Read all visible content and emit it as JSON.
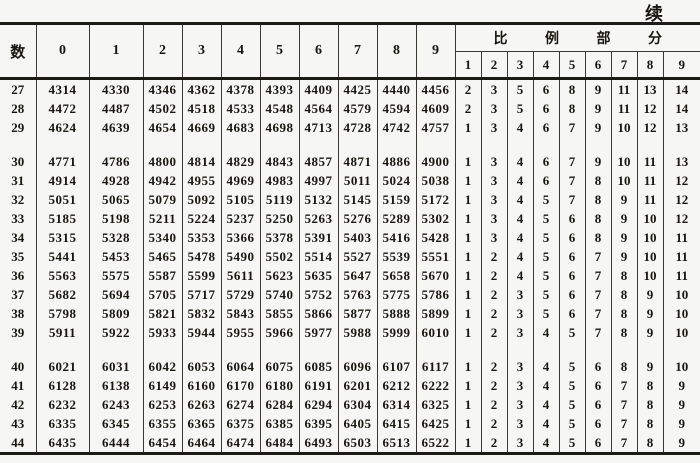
{
  "page": {
    "continued_label": "续"
  },
  "table": {
    "row_header_label": "数",
    "digit_headers": [
      "0",
      "1",
      "2",
      "3",
      "4",
      "5",
      "6",
      "7",
      "8",
      "9"
    ],
    "pp_title": "比 例 部 分",
    "pp_headers": [
      "1",
      "2",
      "3",
      "4",
      "5",
      "6",
      "7",
      "8",
      "9"
    ],
    "groups": [
      {
        "rows": [
          {
            "n": "27",
            "values": [
              "4314",
              "4330",
              "4346",
              "4362",
              "4378",
              "4393",
              "4409",
              "4425",
              "4440",
              "4456"
            ],
            "pp": [
              "2",
              "3",
              "5",
              "6",
              "8",
              "9",
              "11",
              "13",
              "14"
            ]
          },
          {
            "n": "28",
            "values": [
              "4472",
              "4487",
              "4502",
              "4518",
              "4533",
              "4548",
              "4564",
              "4579",
              "4594",
              "4609"
            ],
            "pp": [
              "2",
              "3",
              "5",
              "6",
              "8",
              "9",
              "11",
              "12",
              "14"
            ]
          },
          {
            "n": "29",
            "values": [
              "4624",
              "4639",
              "4654",
              "4669",
              "4683",
              "4698",
              "4713",
              "4728",
              "4742",
              "4757"
            ],
            "pp": [
              "1",
              "3",
              "4",
              "6",
              "7",
              "9",
              "10",
              "12",
              "13"
            ]
          }
        ]
      },
      {
        "rows": [
          {
            "n": "30",
            "values": [
              "4771",
              "4786",
              "4800",
              "4814",
              "4829",
              "4843",
              "4857",
              "4871",
              "4886",
              "4900"
            ],
            "pp": [
              "1",
              "3",
              "4",
              "6",
              "7",
              "9",
              "10",
              "11",
              "13"
            ]
          },
          {
            "n": "31",
            "values": [
              "4914",
              "4928",
              "4942",
              "4955",
              "4969",
              "4983",
              "4997",
              "5011",
              "5024",
              "5038"
            ],
            "pp": [
              "1",
              "3",
              "4",
              "6",
              "7",
              "8",
              "10",
              "11",
              "12"
            ]
          },
          {
            "n": "32",
            "values": [
              "5051",
              "5065",
              "5079",
              "5092",
              "5105",
              "5119",
              "5132",
              "5145",
              "5159",
              "5172"
            ],
            "pp": [
              "1",
              "3",
              "4",
              "5",
              "7",
              "8",
              "9",
              "11",
              "12"
            ]
          },
          {
            "n": "33",
            "values": [
              "5185",
              "5198",
              "5211",
              "5224",
              "5237",
              "5250",
              "5263",
              "5276",
              "5289",
              "5302"
            ],
            "pp": [
              "1",
              "3",
              "4",
              "5",
              "6",
              "8",
              "9",
              "10",
              "12"
            ]
          },
          {
            "n": "34",
            "values": [
              "5315",
              "5328",
              "5340",
              "5353",
              "5366",
              "5378",
              "5391",
              "5403",
              "5416",
              "5428"
            ],
            "pp": [
              "1",
              "3",
              "4",
              "5",
              "6",
              "8",
              "9",
              "10",
              "11"
            ]
          },
          {
            "n": "35",
            "values": [
              "5441",
              "5453",
              "5465",
              "5478",
              "5490",
              "5502",
              "5514",
              "5527",
              "5539",
              "5551"
            ],
            "pp": [
              "1",
              "2",
              "4",
              "5",
              "6",
              "7",
              "9",
              "10",
              "11"
            ]
          },
          {
            "n": "36",
            "values": [
              "5563",
              "5575",
              "5587",
              "5599",
              "5611",
              "5623",
              "5635",
              "5647",
              "5658",
              "5670"
            ],
            "pp": [
              "1",
              "2",
              "4",
              "5",
              "6",
              "7",
              "8",
              "10",
              "11"
            ]
          },
          {
            "n": "37",
            "values": [
              "5682",
              "5694",
              "5705",
              "5717",
              "5729",
              "5740",
              "5752",
              "5763",
              "5775",
              "5786"
            ],
            "pp": [
              "1",
              "2",
              "3",
              "5",
              "6",
              "7",
              "8",
              "9",
              "10"
            ]
          },
          {
            "n": "38",
            "values": [
              "5798",
              "5809",
              "5821",
              "5832",
              "5843",
              "5855",
              "5866",
              "5877",
              "5888",
              "5899"
            ],
            "pp": [
              "1",
              "2",
              "3",
              "5",
              "6",
              "7",
              "8",
              "9",
              "10"
            ]
          },
          {
            "n": "39",
            "values": [
              "5911",
              "5922",
              "5933",
              "5944",
              "5955",
              "5966",
              "5977",
              "5988",
              "5999",
              "6010"
            ],
            "pp": [
              "1",
              "2",
              "3",
              "4",
              "5",
              "7",
              "8",
              "9",
              "10"
            ]
          }
        ]
      },
      {
        "rows": [
          {
            "n": "40",
            "values": [
              "6021",
              "6031",
              "6042",
              "6053",
              "6064",
              "6075",
              "6085",
              "6096",
              "6107",
              "6117"
            ],
            "pp": [
              "1",
              "2",
              "3",
              "4",
              "5",
              "6",
              "8",
              "9",
              "10"
            ]
          },
          {
            "n": "41",
            "values": [
              "6128",
              "6138",
              "6149",
              "6160",
              "6170",
              "6180",
              "6191",
              "6201",
              "6212",
              "6222"
            ],
            "pp": [
              "1",
              "2",
              "3",
              "4",
              "5",
              "6",
              "7",
              "8",
              "9"
            ]
          },
          {
            "n": "42",
            "values": [
              "6232",
              "6243",
              "6253",
              "6263",
              "6274",
              "6284",
              "6294",
              "6304",
              "6314",
              "6325"
            ],
            "pp": [
              "1",
              "2",
              "3",
              "4",
              "5",
              "6",
              "7",
              "8",
              "9"
            ]
          },
          {
            "n": "43",
            "values": [
              "6335",
              "6345",
              "6355",
              "6365",
              "6375",
              "6385",
              "6395",
              "6405",
              "6415",
              "6425"
            ],
            "pp": [
              "1",
              "2",
              "3",
              "4",
              "5",
              "6",
              "7",
              "8",
              "9"
            ]
          },
          {
            "n": "44",
            "values": [
              "6435",
              "6444",
              "6454",
              "6464",
              "6474",
              "6484",
              "6493",
              "6503",
              "6513",
              "6522"
            ],
            "pp": [
              "1",
              "2",
              "3",
              "4",
              "5",
              "6",
              "7",
              "8",
              "9"
            ]
          }
        ]
      }
    ]
  }
}
